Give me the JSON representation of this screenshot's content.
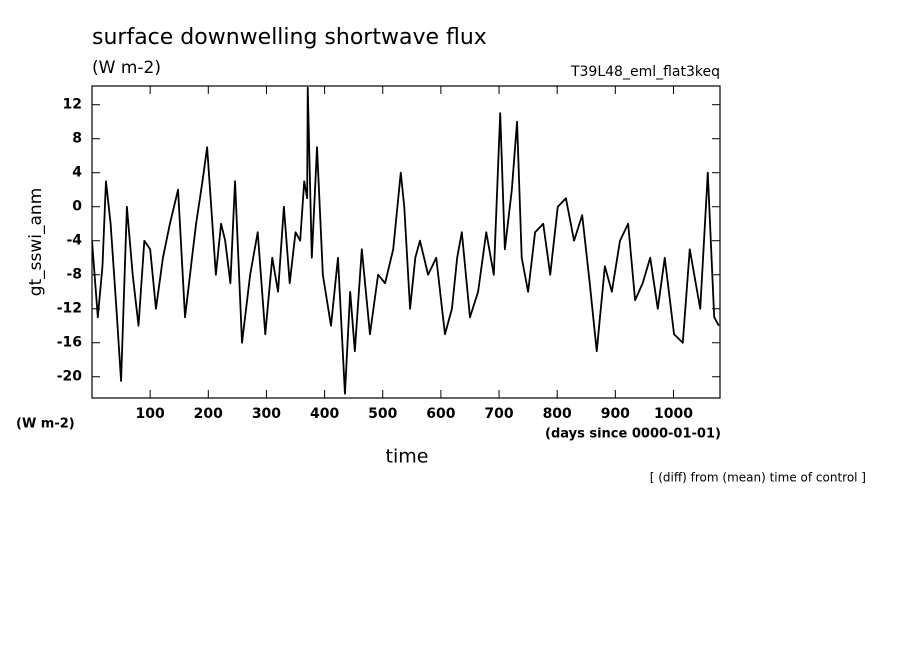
{
  "chart_data": {
    "type": "line",
    "title": "surface downwelling shortwave flux",
    "subtitle": "(W m-2)",
    "run_label": "T39L48_eml_flat3keq",
    "y_label": "gt_sswi_anm",
    "y_units": "(W m-2)",
    "x_units": "(days since 0000-01-01)",
    "x_label": "time",
    "note": "[ (diff) from (mean) time of control ]",
    "x": [
      0,
      10,
      18,
      24,
      32,
      42,
      50,
      60,
      70,
      80,
      90,
      100,
      110,
      122,
      134,
      148,
      160,
      172,
      179,
      190,
      198,
      206,
      213,
      222,
      229,
      238,
      246,
      258,
      272,
      285,
      298,
      310,
      320,
      330,
      340,
      350,
      358,
      365,
      370,
      371,
      378,
      387,
      397,
      411,
      423,
      435,
      444,
      452,
      464,
      478,
      492,
      504,
      518,
      531,
      537,
      547,
      556,
      564,
      578,
      592,
      607,
      619,
      628,
      636,
      650,
      664,
      678,
      691,
      702,
      710,
      722,
      731,
      739,
      750,
      762,
      776,
      788,
      801,
      815,
      829,
      843,
      856,
      868,
      882,
      894,
      908,
      922,
      934,
      947,
      960,
      973,
      985,
      1001,
      1016,
      1028,
      1046,
      1059,
      1070,
      1078
    ],
    "series": [
      {
        "name": "gt_sswi_anm",
        "color": "#000000",
        "values": [
          -4,
          -13,
          -7,
          3,
          -2,
          -12,
          -20.5,
          0,
          -8,
          -14,
          -4,
          -5,
          -12,
          -6,
          -2,
          2,
          -13,
          -6,
          -2,
          3,
          7,
          -1,
          -8,
          -2,
          -4,
          -9,
          3,
          -16,
          -8,
          -3,
          -15,
          -6,
          -10,
          0,
          -9,
          -3,
          -4,
          3,
          1,
          14,
          -6,
          7,
          -8,
          -14,
          -6,
          -22,
          -10,
          -17,
          -5,
          -15,
          -8,
          -9,
          -5,
          4,
          0,
          -12,
          -6,
          -4,
          -8,
          -6,
          -15,
          -12,
          -6,
          -3,
          -13,
          -10,
          -3,
          -8,
          11,
          -5,
          2,
          10,
          -6,
          -10,
          -3,
          -2,
          -8,
          0,
          1,
          -4,
          -1,
          -9,
          -17,
          -7,
          -10,
          -4,
          -2,
          -11,
          -9,
          -6,
          -12,
          -6,
          -15,
          -16,
          -5,
          -12,
          4,
          -13,
          -14
        ]
      }
    ],
    "xlim": [
      0,
      1080
    ],
    "xticks": [
      100,
      200,
      300,
      400,
      500,
      600,
      700,
      800,
      900,
      1000
    ],
    "ylim": [
      -22.5,
      14.2
    ],
    "yticks": [
      -20,
      -16,
      -12,
      -8,
      -4,
      0,
      4,
      8,
      12
    ],
    "grid": false
  }
}
